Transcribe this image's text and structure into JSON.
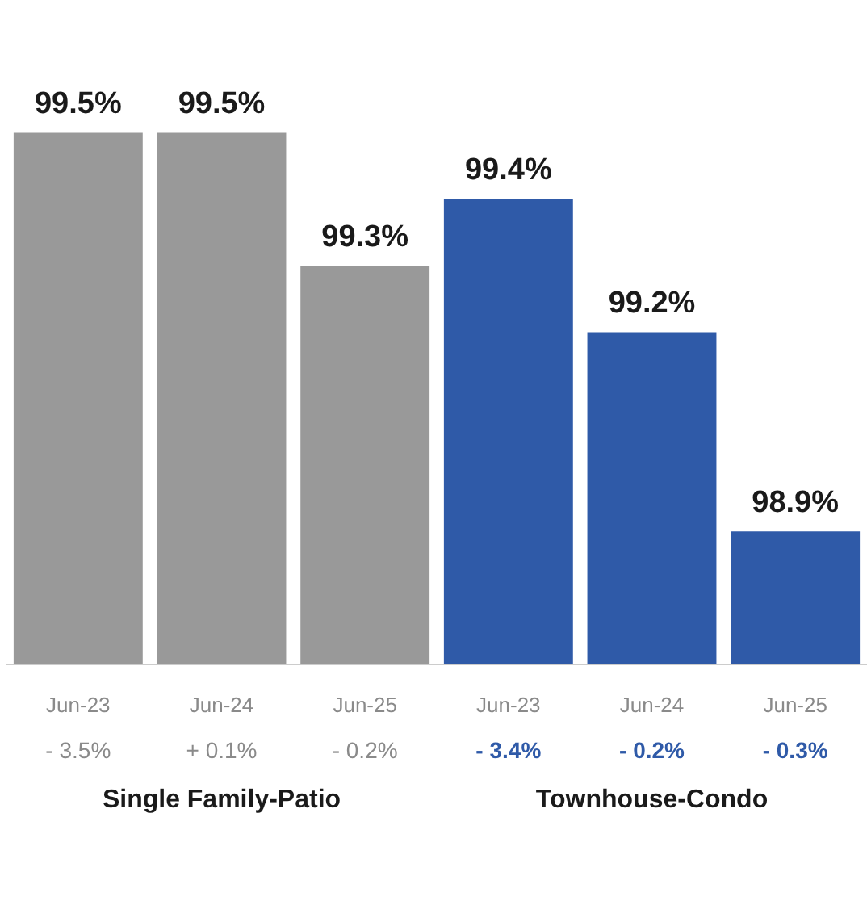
{
  "chart_data": {
    "type": "bar",
    "categories": [
      "Jun-23",
      "Jun-24",
      "Jun-25",
      "Jun-23",
      "Jun-24",
      "Jun-25"
    ],
    "tick_labels": "x",
    "grid": false,
    "legend": false,
    "series": [
      {
        "name": "Single Family-Patio",
        "color": "#999999",
        "values": [
          99.5,
          99.5,
          99.3,
          null,
          null,
          null
        ],
        "value_labels": [
          "99.5%",
          "99.5%",
          "99.3%",
          null,
          null,
          null
        ]
      },
      {
        "name": "Townhouse-Condo",
        "color": "#2f5aa8",
        "values": [
          null,
          null,
          null,
          99.4,
          99.2,
          98.9
        ],
        "value_labels": [
          null,
          null,
          null,
          "99.4%",
          "99.2%",
          "98.9%"
        ]
      }
    ],
    "annotations": [
      "- 3.5%",
      "+ 0.1%",
      "- 0.2%",
      "- 3.4%",
      "- 0.2%",
      "- 0.3%"
    ]
  }
}
